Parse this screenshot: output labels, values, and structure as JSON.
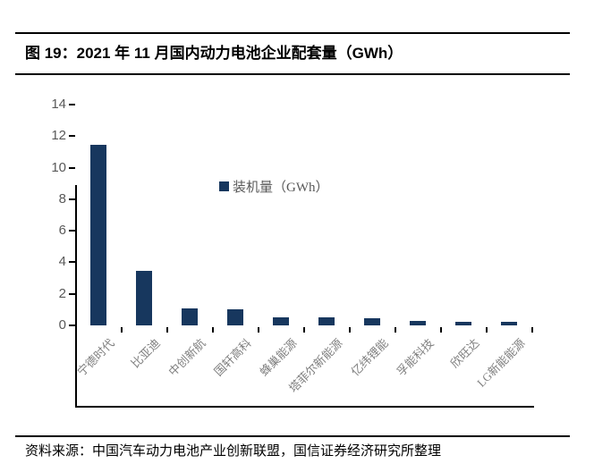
{
  "figure": {
    "title": "图 19：2021 年 11 月国内动力电池企业配套量（GWh）"
  },
  "chart_data": {
    "type": "bar",
    "title": "2021 年 11 月国内动力电池企业配套量（GWh）",
    "categories": [
      "宁德时代",
      "比亚迪",
      "中创新航",
      "国轩高科",
      "蜂巢能源",
      "塔菲尔新能源",
      "亿纬锂能",
      "孚能科技",
      "欣旺达",
      "LG新能能源"
    ],
    "values": [
      11.45,
      3.43,
      1.07,
      1.03,
      0.53,
      0.49,
      0.43,
      0.3,
      0.25,
      0.2
    ],
    "legend": [
      "装机量（GWh）"
    ],
    "legend_position": "top-center",
    "xlabel": "",
    "ylabel": "",
    "ylim": [
      0,
      14
    ],
    "yticks": [
      0,
      2,
      4,
      6,
      8,
      10,
      12,
      14
    ],
    "grid": false,
    "bar_color": "#17375E"
  },
  "colors": {
    "bar": "#17375E",
    "axis": "#000000",
    "ytick_label": "#595959",
    "xtick_label": "#7F7F7F",
    "legend_text": "#595959",
    "background": "#FFFFFF"
  },
  "footer": {
    "source_text": "资料来源：中国汽车动力电池产业创新联盟，国信证券经济研究所整理"
  }
}
